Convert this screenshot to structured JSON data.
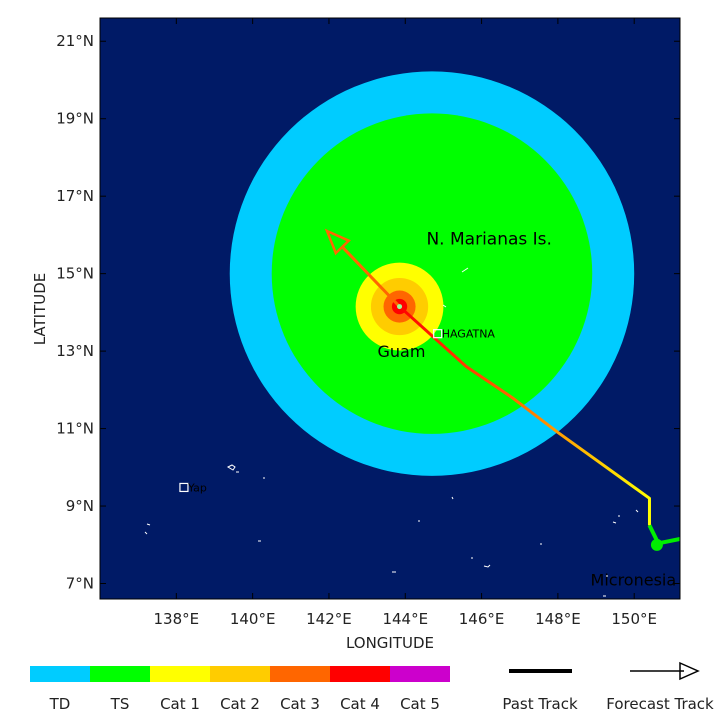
{
  "map": {
    "lon_range": [
      136,
      151.2
    ],
    "lat_range": [
      6.6,
      21.6
    ],
    "lon_ticks": [
      "138°E",
      "140°E",
      "142°E",
      "144°E",
      "146°E",
      "148°E",
      "150°E"
    ],
    "lat_ticks": [
      "7°N",
      "9°N",
      "11°N",
      "13°N",
      "15°N",
      "17°N",
      "19°N",
      "21°N"
    ],
    "xlabel": "LONGITUDE",
    "ylabel": "LATITUDE",
    "ocean_color": "#001a66"
  },
  "wind_radii": {
    "center": [
      144.7,
      15.0
    ],
    "td": {
      "radius_deg": 5.3,
      "color": "#00ccff"
    },
    "ts": {
      "radius_deg": 4.2,
      "color": "#00ff00"
    }
  },
  "core": {
    "center": [
      143.85,
      14.15
    ],
    "cat1": {
      "radius_deg": 1.15,
      "color": "#ffff00"
    },
    "cat2": {
      "radius_deg": 0.75,
      "color": "#ffcc00"
    },
    "cat3": {
      "radius_deg": 0.42,
      "color": "#ff6600"
    },
    "cat4": {
      "radius_deg": 0.2,
      "color": "#ff0000"
    }
  },
  "past_track": [
    [
      151.2,
      8.15
    ],
    [
      150.7,
      8.05
    ],
    [
      150.6,
      8.1
    ],
    [
      150.4,
      8.5
    ],
    [
      150.4,
      9.2
    ],
    [
      148.0,
      10.9
    ],
    [
      146.8,
      11.8
    ],
    [
      145.6,
      12.6
    ],
    [
      143.85,
      14.15
    ]
  ],
  "forecast_track": [
    [
      143.85,
      14.15
    ],
    [
      141.95,
      16.1
    ]
  ],
  "places": [
    {
      "name": "N. Marianas Is.",
      "lon": 146.2,
      "lat": 15.75,
      "size": 17
    },
    {
      "name": "Guam",
      "lon": 143.9,
      "lat": 12.85,
      "size": 16
    },
    {
      "name": "HAGATNA",
      "lon": 144.85,
      "lat": 13.45,
      "size": 11,
      "marker": true
    },
    {
      "name": "Yap",
      "lon": 138.2,
      "lat": 9.48,
      "size": 11,
      "marker": true
    },
    {
      "name": "Micronesia",
      "lon": 151.1,
      "lat": 6.95,
      "size": 16,
      "color": "#00dd00",
      "anchor": "end"
    }
  ],
  "legend": {
    "categories": [
      {
        "label": "TD",
        "color": "#00ccff"
      },
      {
        "label": "TS",
        "color": "#00ff00"
      },
      {
        "label": "Cat 1",
        "color": "#ffff00"
      },
      {
        "label": "Cat 2",
        "color": "#ffcc00"
      },
      {
        "label": "Cat 3",
        "color": "#ff6600"
      },
      {
        "label": "Cat 4",
        "color": "#ff0000"
      },
      {
        "label": "Cat 5",
        "color": "#cc00cc"
      }
    ],
    "past_track_label": "Past Track",
    "forecast_track_label": "Forecast Track"
  }
}
